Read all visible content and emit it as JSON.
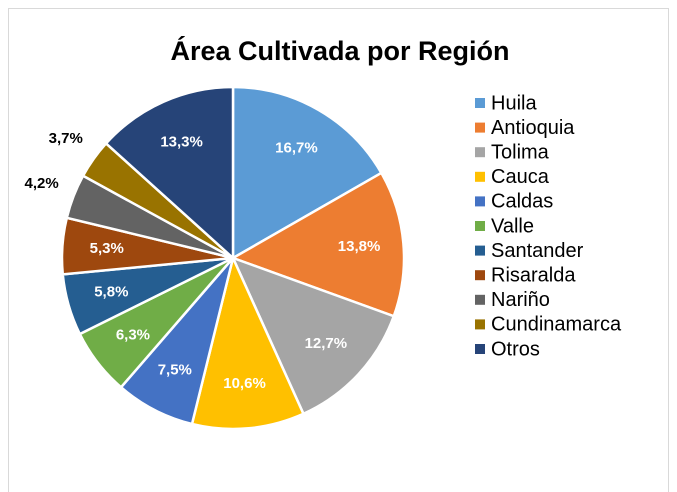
{
  "chart_data": {
    "type": "pie",
    "title": "Área Cultivada por Región",
    "categories": [
      "Huila",
      "Antioquia",
      "Tolima",
      "Cauca",
      "Caldas",
      "Valle",
      "Santander",
      "Risaralda",
      "Nariño",
      "Cundinamarca",
      "Otros"
    ],
    "values": [
      16.7,
      13.8,
      12.7,
      10.6,
      7.5,
      6.3,
      5.8,
      5.3,
      4.2,
      3.7,
      13.3
    ],
    "value_labels": [
      "16,7%",
      "13,8%",
      "12,7%",
      "10,6%",
      "7,5%",
      "6,3%",
      "5,8%",
      "5,3%",
      "4,2%",
      "3,7%",
      "13,3%"
    ],
    "colors": [
      "#5b9bd5",
      "#ed7d31",
      "#a5a5a5",
      "#ffc000",
      "#4472c4",
      "#70ad47",
      "#255e91",
      "#9e480e",
      "#636363",
      "#997300",
      "#264478"
    ],
    "legend": "right"
  }
}
